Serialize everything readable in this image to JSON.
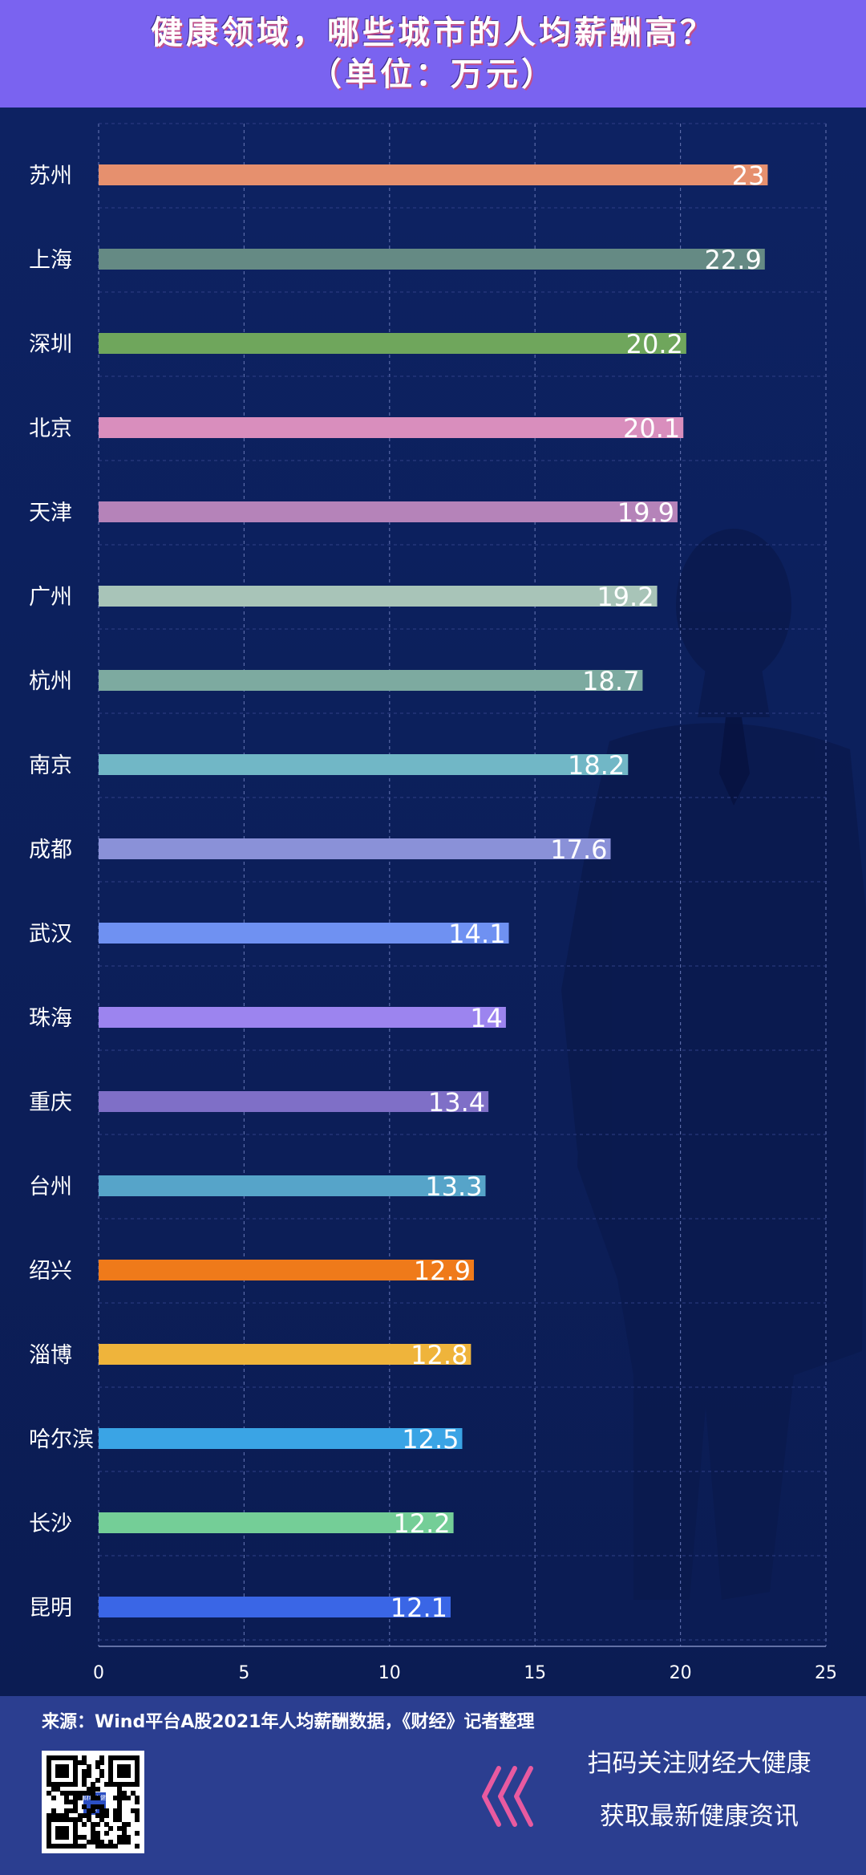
{
  "header": {
    "title_line1": "健康领域，哪些城市的人均薪酬高？",
    "title_line2": "（单位：万元）"
  },
  "chart_data": {
    "type": "bar",
    "orientation": "horizontal",
    "title": "健康领域，哪些城市的人均薪酬高？（单位：万元）",
    "categories": [
      "苏州",
      "上海",
      "深圳",
      "北京",
      "天津",
      "广州",
      "杭州",
      "南京",
      "成都",
      "武汉",
      "珠海",
      "重庆",
      "台州",
      "绍兴",
      "淄博",
      "哈尔滨",
      "长沙",
      "昆明"
    ],
    "values": [
      23,
      22.9,
      20.2,
      20.1,
      19.9,
      19.2,
      18.7,
      18.2,
      17.6,
      14.1,
      14,
      13.4,
      13.3,
      12.9,
      12.8,
      12.5,
      12.2,
      12.1
    ],
    "value_labels": [
      "23",
      "22.9",
      "20.2",
      "20.1",
      "19.9",
      "19.2",
      "18.7",
      "18.2",
      "17.6",
      "14.1",
      "14",
      "13.4",
      "13.3",
      "12.9",
      "12.8",
      "12.5",
      "12.2",
      "12.1"
    ],
    "bar_colors": [
      "#e6906e",
      "#658a84",
      "#6fa65c",
      "#d98ebd",
      "#b583b9",
      "#a8c4b8",
      "#7daaa0",
      "#71b7c6",
      "#8a91d8",
      "#6f91f2",
      "#9c84ef",
      "#7f6fc7",
      "#56a4c9",
      "#ef7a1a",
      "#efb43b",
      "#3aa4e5",
      "#74ce97",
      "#3a66e6"
    ],
    "xlim": [
      0,
      25
    ],
    "xticks": [
      "0",
      "5",
      "10",
      "15",
      "20",
      "25"
    ],
    "grid": true,
    "legend": "none"
  },
  "footer": {
    "source": "来源：Wind平台A股2021年人均薪酬数据，《财经》记者整理",
    "qr_label": "财经大健康",
    "promo_line1": "扫码关注财经大健康",
    "promo_line2": "获取最新健康资讯"
  },
  "colors": {
    "background": "#0d1f5c",
    "title_bar": "#7a63f0",
    "footer": "#2b3e90",
    "arrow_accent": "#e85aa0"
  }
}
